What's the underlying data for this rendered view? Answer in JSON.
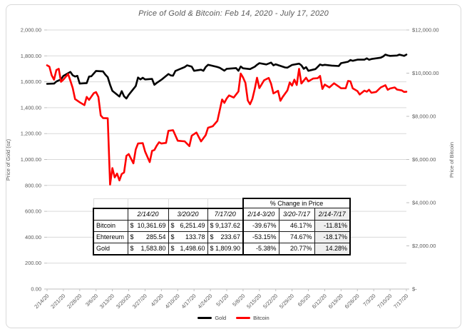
{
  "chart_data": {
    "type": "line",
    "title": "Price of Gold & Bitcoin: Feb 14, 2020 - July 17, 2020",
    "grid": true,
    "legend_position": "bottom",
    "x_unit": "days since 2/14/20",
    "x_range": [
      0,
      154
    ],
    "x_tick_labels": [
      "2/14/20",
      "2/21/20",
      "2/28/20",
      "3/6/20",
      "3/13/20",
      "3/20/20",
      "3/27/20",
      "4/3/20",
      "4/10/20",
      "4/17/20",
      "4/24/20",
      "5/1/20",
      "5/8/20",
      "5/15/20",
      "5/22/20",
      "5/29/20",
      "6/5/20",
      "6/12/20",
      "6/19/20",
      "6/26/20",
      "7/3/20",
      "7/10/20",
      "7/17/20"
    ],
    "left_axis": {
      "title": "Price of Gold (oz)",
      "min": 0,
      "max": 2000,
      "tick_step": 200,
      "tick_labels": [
        "0.00",
        "200.00",
        "400.00",
        "600.00",
        "800.00",
        "1,000.00",
        "1,200.00",
        "1,400.00",
        "1,600.00",
        "1,800.00",
        "2,000.00"
      ]
    },
    "right_axis": {
      "title": "Price of Bitcoin",
      "min": 0,
      "max": 12000,
      "tick_step": 2000,
      "tick_labels": [
        "$-",
        "$2,000.00",
        "$4,000.00",
        "$6,000.00",
        "$8,000.00",
        "$10,000.00",
        "$12,000.00"
      ]
    },
    "series": [
      {
        "name": "Gold",
        "axis": "left",
        "color": "#000000",
        "points": [
          [
            0,
            1584
          ],
          [
            3,
            1586
          ],
          [
            4,
            1602
          ],
          [
            6,
            1619
          ],
          [
            7,
            1645
          ],
          [
            10,
            1676
          ],
          [
            11,
            1650
          ],
          [
            12,
            1641
          ],
          [
            13,
            1646
          ],
          [
            14,
            1586
          ],
          [
            17,
            1590
          ],
          [
            18,
            1640
          ],
          [
            19,
            1643
          ],
          [
            21,
            1684
          ],
          [
            24,
            1680
          ],
          [
            25,
            1655
          ],
          [
            26,
            1636
          ],
          [
            27,
            1577
          ],
          [
            28,
            1530
          ],
          [
            31,
            1486
          ],
          [
            32,
            1528
          ],
          [
            33,
            1488
          ],
          [
            34,
            1471
          ],
          [
            35,
            1499
          ],
          [
            38,
            1567
          ],
          [
            39,
            1633
          ],
          [
            40,
            1618
          ],
          [
            41,
            1631
          ],
          [
            42,
            1618
          ],
          [
            45,
            1622
          ],
          [
            46,
            1577
          ],
          [
            47,
            1591
          ],
          [
            49,
            1616
          ],
          [
            52,
            1660
          ],
          [
            53,
            1649
          ],
          [
            54,
            1647
          ],
          [
            55,
            1684
          ],
          [
            59,
            1714
          ],
          [
            60,
            1727
          ],
          [
            62,
            1717
          ],
          [
            63,
            1685
          ],
          [
            66,
            1693
          ],
          [
            67,
            1685
          ],
          [
            68,
            1714
          ],
          [
            69,
            1731
          ],
          [
            70,
            1727
          ],
          [
            73,
            1714
          ],
          [
            74,
            1708
          ],
          [
            76,
            1686
          ],
          [
            77,
            1700
          ],
          [
            81,
            1706
          ],
          [
            82,
            1685
          ],
          [
            83,
            1718
          ],
          [
            84,
            1704
          ],
          [
            87,
            1698
          ],
          [
            89,
            1716
          ],
          [
            90,
            1731
          ],
          [
            91,
            1744
          ],
          [
            94,
            1734
          ],
          [
            96,
            1748
          ],
          [
            97,
            1727
          ],
          [
            98,
            1735
          ],
          [
            102,
            1711
          ],
          [
            103,
            1709
          ],
          [
            105,
            1730
          ],
          [
            108,
            1740
          ],
          [
            109,
            1727
          ],
          [
            110,
            1700
          ],
          [
            111,
            1713
          ],
          [
            112,
            1685
          ],
          [
            115,
            1698
          ],
          [
            116,
            1715
          ],
          [
            117,
            1734
          ],
          [
            118,
            1727
          ],
          [
            119,
            1731
          ],
          [
            122,
            1725
          ],
          [
            125,
            1722
          ],
          [
            126,
            1744
          ],
          [
            129,
            1755
          ],
          [
            130,
            1768
          ],
          [
            131,
            1762
          ],
          [
            133,
            1771
          ],
          [
            136,
            1771
          ],
          [
            137,
            1781
          ],
          [
            138,
            1770
          ],
          [
            139,
            1776
          ],
          [
            143,
            1786
          ],
          [
            144,
            1795
          ],
          [
            145,
            1810
          ],
          [
            146,
            1804
          ],
          [
            147,
            1800
          ],
          [
            150,
            1803
          ],
          [
            151,
            1810
          ],
          [
            153,
            1800
          ],
          [
            154,
            1810
          ]
        ]
      },
      {
        "name": "Bitcoin",
        "axis": "right",
        "color": "#FF0000",
        "points": [
          [
            0,
            10362
          ],
          [
            1,
            10300
          ],
          [
            2,
            9900
          ],
          [
            3,
            9700
          ],
          [
            4,
            10150
          ],
          [
            5,
            10200
          ],
          [
            6,
            9600
          ],
          [
            7,
            9700
          ],
          [
            9,
            9960
          ],
          [
            10,
            9650
          ],
          [
            11,
            9310
          ],
          [
            12,
            8800
          ],
          [
            14,
            8650
          ],
          [
            16,
            8520
          ],
          [
            17,
            8900
          ],
          [
            18,
            8760
          ],
          [
            20,
            9070
          ],
          [
            21,
            9120
          ],
          [
            22,
            8900
          ],
          [
            23,
            8040
          ],
          [
            24,
            7920
          ],
          [
            26,
            7910
          ],
          [
            27,
            4840
          ],
          [
            28,
            5600
          ],
          [
            29,
            5170
          ],
          [
            30,
            5350
          ],
          [
            31,
            5030
          ],
          [
            32,
            5330
          ],
          [
            33,
            5400
          ],
          [
            34,
            6170
          ],
          [
            35,
            6251
          ],
          [
            37,
            5820
          ],
          [
            38,
            6470
          ],
          [
            39,
            6740
          ],
          [
            41,
            6760
          ],
          [
            42,
            6370
          ],
          [
            44,
            5880
          ],
          [
            45,
            6400
          ],
          [
            46,
            6440
          ],
          [
            47,
            6640
          ],
          [
            48,
            6800
          ],
          [
            49,
            6740
          ],
          [
            51,
            6770
          ],
          [
            52,
            7330
          ],
          [
            54,
            7360
          ],
          [
            56,
            6870
          ],
          [
            59,
            6840
          ],
          [
            61,
            6620
          ],
          [
            62,
            7100
          ],
          [
            64,
            7250
          ],
          [
            66,
            6840
          ],
          [
            68,
            7130
          ],
          [
            69,
            7470
          ],
          [
            71,
            7540
          ],
          [
            73,
            7790
          ],
          [
            75,
            8780
          ],
          [
            76,
            8620
          ],
          [
            77,
            8830
          ],
          [
            78,
            8970
          ],
          [
            80,
            8870
          ],
          [
            82,
            9150
          ],
          [
            83,
            9980
          ],
          [
            84,
            9800
          ],
          [
            85,
            9550
          ],
          [
            86,
            8740
          ],
          [
            87,
            8560
          ],
          [
            88,
            8810
          ],
          [
            89,
            9270
          ],
          [
            90,
            9790
          ],
          [
            91,
            9310
          ],
          [
            93,
            9670
          ],
          [
            95,
            9780
          ],
          [
            96,
            9510
          ],
          [
            97,
            9060
          ],
          [
            99,
            9180
          ],
          [
            100,
            8720
          ],
          [
            101,
            8900
          ],
          [
            103,
            9200
          ],
          [
            104,
            9570
          ],
          [
            105,
            9420
          ],
          [
            106,
            9700
          ],
          [
            107,
            9450
          ],
          [
            108,
            10200
          ],
          [
            109,
            9520
          ],
          [
            111,
            9790
          ],
          [
            112,
            9620
          ],
          [
            114,
            9750
          ],
          [
            116,
            9770
          ],
          [
            117,
            9870
          ],
          [
            118,
            9270
          ],
          [
            119,
            9470
          ],
          [
            121,
            9340
          ],
          [
            123,
            9530
          ],
          [
            125,
            9380
          ],
          [
            126,
            9300
          ],
          [
            128,
            9300
          ],
          [
            129,
            9640
          ],
          [
            130,
            9620
          ],
          [
            131,
            9300
          ],
          [
            133,
            9170
          ],
          [
            134,
            9010
          ],
          [
            136,
            9190
          ],
          [
            137,
            9140
          ],
          [
            138,
            9230
          ],
          [
            139,
            9090
          ],
          [
            141,
            9130
          ],
          [
            143,
            9340
          ],
          [
            145,
            9440
          ],
          [
            146,
            9230
          ],
          [
            147,
            9290
          ],
          [
            149,
            9340
          ],
          [
            150,
            9240
          ],
          [
            152,
            9200
          ],
          [
            153,
            9130
          ],
          [
            154,
            9138
          ]
        ]
      }
    ]
  },
  "table": {
    "merged_header": "% Change in Price",
    "price_headers": [
      "2/14/20",
      "3/20/20",
      "7/17/20"
    ],
    "change_headers": [
      "2/14-3/20",
      "3/20-7/17",
      "2/14-7/17"
    ],
    "currency": "$",
    "rows": [
      {
        "label": "Bitcoin",
        "prices": [
          "10,361.69",
          "6,251.49",
          "9,137.62"
        ],
        "changes": [
          "-39.67%",
          "46.17%",
          "-11.81%"
        ]
      },
      {
        "label": "Ehtereum",
        "prices": [
          "285.54",
          "133.78",
          "233.67"
        ],
        "changes": [
          "-53.15%",
          "74.67%",
          "-18.17%"
        ]
      },
      {
        "label": "Gold",
        "prices": [
          "1,583.80",
          "1,498.60",
          "1,809.90"
        ],
        "changes": [
          "-5.38%",
          "20.77%",
          "14.28%"
        ]
      }
    ]
  },
  "colors": {
    "gold_line": "#000000",
    "bitcoin_line": "#FF0000",
    "gridline": "#D9D9D9",
    "axis_line": "#BFBFBF",
    "axis_text": "#595959",
    "frame_border": "#D9D9D9",
    "table_shade": "#EFEFEF"
  }
}
